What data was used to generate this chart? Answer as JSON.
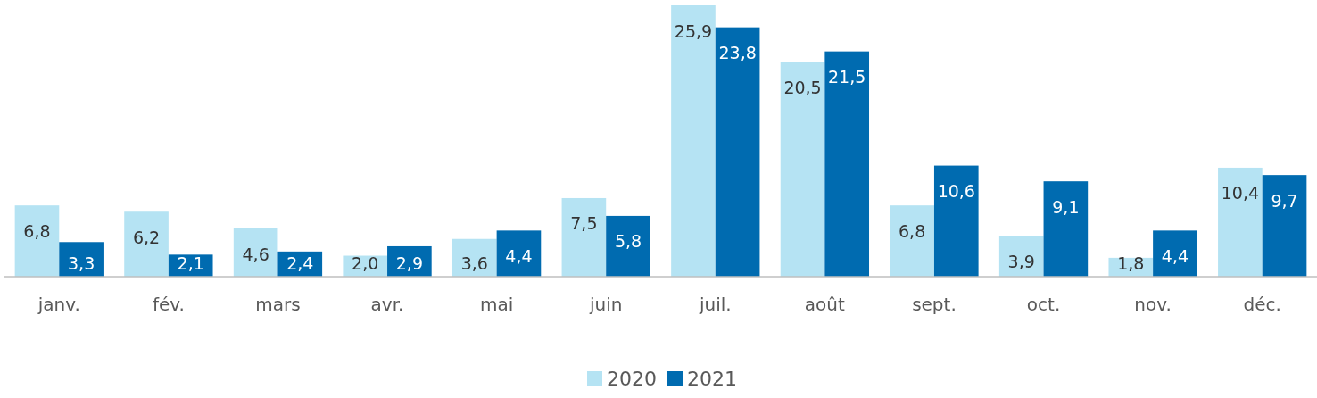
{
  "chart_data": {
    "type": "bar",
    "categories": [
      "janv.",
      "fév.",
      "mars",
      "avr.",
      "mai",
      "juin",
      "juil.",
      "août",
      "sept.",
      "oct.",
      "nov.",
      "déc."
    ],
    "series": [
      {
        "name": "2020",
        "color": "#b5e3f3",
        "values": [
          6.8,
          6.2,
          4.6,
          2.0,
          3.6,
          7.5,
          25.9,
          20.5,
          6.8,
          3.9,
          1.8,
          10.4
        ],
        "value_labels": [
          "6,8",
          "6,2",
          "4,6",
          "2,0",
          "3,6",
          "7,5",
          "25,9",
          "20,5",
          "6,8",
          "3,9",
          "1,8",
          "10,4"
        ]
      },
      {
        "name": "2021",
        "color": "#006bb0",
        "values": [
          3.3,
          2.1,
          2.4,
          2.9,
          4.4,
          5.8,
          23.8,
          21.5,
          10.6,
          9.1,
          4.4,
          9.7
        ],
        "value_labels": [
          "3,3",
          "2,1",
          "2,4",
          "2,9",
          "4,4",
          "5,8",
          "23,8",
          "21,5",
          "10,6",
          "9,1",
          "4,4",
          "9,7"
        ]
      }
    ],
    "legend": "bottom",
    "grid": false
  }
}
